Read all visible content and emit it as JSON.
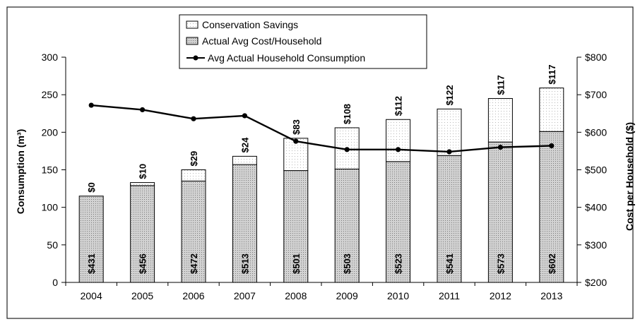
{
  "chart_data": {
    "type": "bar",
    "categories": [
      "2004",
      "2005",
      "2006",
      "2007",
      "2008",
      "2009",
      "2010",
      "2011",
      "2012",
      "2013"
    ],
    "series": [
      {
        "name": "Actual Avg Cost/Household",
        "values": [
          431,
          456,
          472,
          513,
          501,
          503,
          523,
          541,
          573,
          602
        ],
        "labels": [
          "$431",
          "$456",
          "$472",
          "$513",
          "$501",
          "$503",
          "$523",
          "$541",
          "$573",
          "$602"
        ],
        "bar_top_consumption": [
          115,
          129,
          135,
          157,
          149,
          151,
          161,
          169,
          187,
          201
        ]
      },
      {
        "name": "Conservation Savings",
        "values": [
          0,
          10,
          29,
          24,
          83,
          108,
          112,
          122,
          117,
          117
        ],
        "labels": [
          "$0",
          "$10",
          "$29",
          "$24",
          "$83",
          "$108",
          "$112",
          "$122",
          "$117",
          "$117"
        ],
        "bar_top_consumption": [
          115,
          133,
          150,
          168,
          192,
          206,
          217,
          231,
          245,
          259
        ]
      },
      {
        "name": "Avg Actual Household Consumption",
        "type": "line",
        "values": [
          236,
          230,
          218,
          222,
          188,
          177,
          177,
          174,
          180,
          182
        ]
      }
    ],
    "ylabel": "Consumption (m³)",
    "y2label": "Cost per Household ($)",
    "ylim": [
      0,
      300
    ],
    "yticks": [
      "0",
      "50",
      "100",
      "150",
      "200",
      "250",
      "300"
    ],
    "y2lim": [
      200,
      800
    ],
    "y2ticks": [
      "$200",
      "$300",
      "$400",
      "$500",
      "$600",
      "$700",
      "$800"
    ],
    "legend": {
      "position": "top-center",
      "items": [
        "Conservation Savings",
        "Actual Avg Cost/Household",
        "Avg Actual Household Consumption"
      ]
    },
    "grid": false,
    "colors": {
      "actual": "#cfcfcf",
      "savings": "#ffffff",
      "line": "#000000"
    }
  }
}
